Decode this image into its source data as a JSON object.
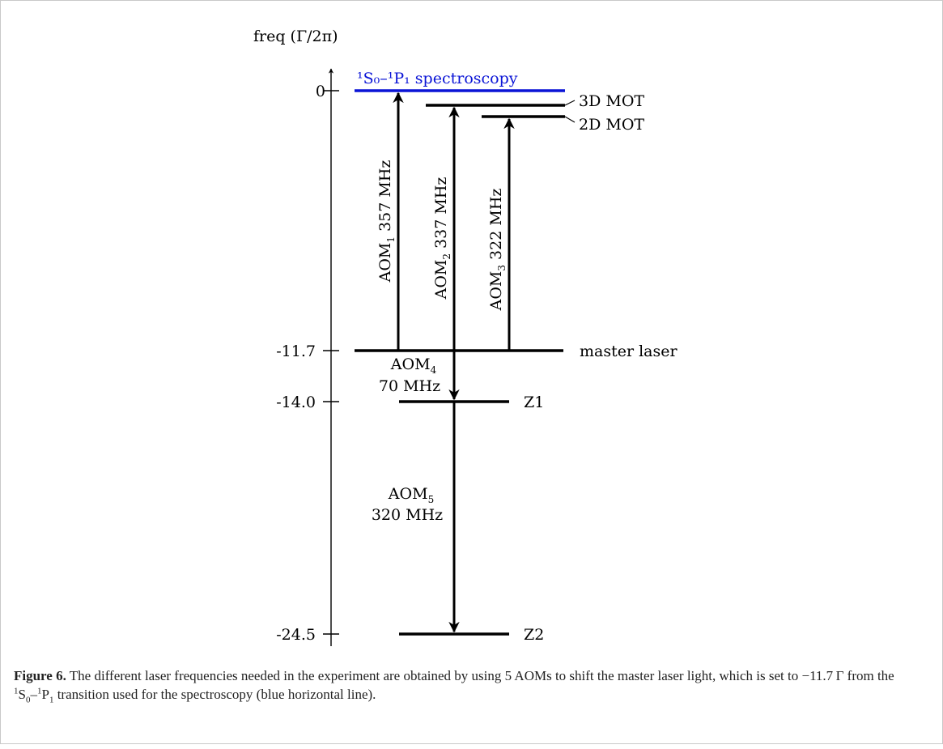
{
  "diagram": {
    "axis_label": "freq (Γ/2π)",
    "levels": [
      {
        "id": "spectroscopy",
        "value": 0,
        "tick_label": "0",
        "color": "#0a14d6",
        "label": "¹S₀–¹P₁ spectroscopy"
      },
      {
        "id": "mot3d",
        "value": -0.9,
        "label": "3D MOT"
      },
      {
        "id": "mot2d",
        "value": -1.5,
        "label": "2D MOT"
      },
      {
        "id": "master",
        "value": -11.7,
        "tick_label": "-11.7",
        "label": "master laser"
      },
      {
        "id": "z1",
        "value": -14.0,
        "tick_label": "-14.0",
        "label": "Z1"
      },
      {
        "id": "z2",
        "value": -24.5,
        "tick_label": "-24.5",
        "label": "Z2"
      }
    ],
    "aoms": [
      {
        "id": "aom1",
        "name": "AOM",
        "sub": "1",
        "freq": "357 MHz"
      },
      {
        "id": "aom2",
        "name": "AOM",
        "sub": "2",
        "freq": "337 MHz"
      },
      {
        "id": "aom3",
        "name": "AOM",
        "sub": "3",
        "freq": "322 MHz"
      },
      {
        "id": "aom4",
        "name": "AOM",
        "sub": "4",
        "freq": "70 MHz"
      },
      {
        "id": "aom5",
        "name": "AOM",
        "sub": "5",
        "freq": "320 MHz"
      }
    ]
  },
  "caption": {
    "figure_label": "Figure 6.",
    "text_part1": " The different laser frequencies needed in the experiment are obtained by using 5 AOMs to shift the master laser light, which is set to −11.7 Γ from the ",
    "sup1": "1",
    "s": "S",
    "sub0": "0",
    "dash": "–",
    "sup2": "1",
    "p": "P",
    "sub1": "1",
    "text_part2": " transition used for the spectroscopy (blue horizontal line)."
  }
}
